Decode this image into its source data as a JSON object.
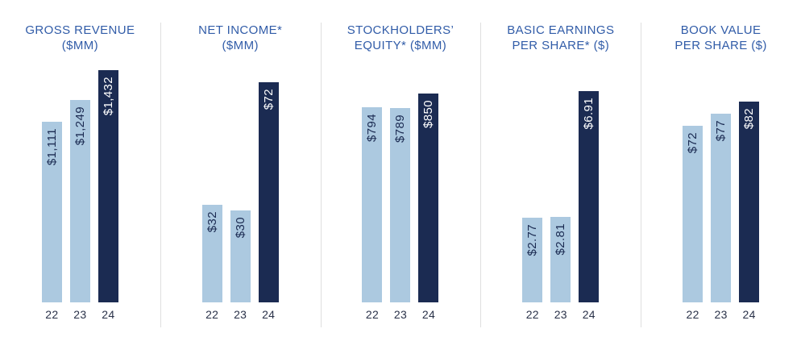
{
  "colors": {
    "bar_light": "#ACC9E0",
    "bar_dark": "#1B2B52",
    "title": "#315CA8",
    "tick": "#2A3249",
    "divider": "#DFDFDF"
  },
  "chart_data": [
    {
      "type": "bar",
      "title": "GROSS REVENUE ($MM)",
      "title_line1": "GROSS REVENUE",
      "title_line2": "($MM)",
      "categories": [
        "22",
        "23",
        "24"
      ],
      "values": [
        1111,
        1249,
        1432
      ],
      "value_labels": [
        "$1,111",
        "$1,249",
        "$1,432"
      ],
      "bar_styles": [
        "light",
        "light",
        "dark"
      ],
      "ymax": 1440,
      "ylim": [
        0,
        1440
      ],
      "xlabel": "",
      "ylabel": "",
      "grid": false,
      "legend": "none"
    },
    {
      "type": "bar",
      "title": "NET INCOME* ($MM)",
      "title_line1": "NET INCOME*",
      "title_line2": "($MM)",
      "categories": [
        "22",
        "23",
        "24"
      ],
      "values": [
        32,
        30,
        72
      ],
      "value_labels": [
        "$32",
        "$30",
        "$72"
      ],
      "bar_styles": [
        "light",
        "light",
        "dark"
      ],
      "ymax": 76.5,
      "ylim": [
        0,
        76.5
      ],
      "xlabel": "",
      "ylabel": "",
      "grid": false,
      "legend": "none"
    },
    {
      "type": "bar",
      "title": "STOCKHOLDERS’ EQUITY* ($MM)",
      "title_line1": "STOCKHOLDERS’",
      "title_line2": "EQUITY* ($MM)",
      "categories": [
        "22",
        "23",
        "24"
      ],
      "values": [
        794,
        789,
        850
      ],
      "value_labels": [
        "$794",
        "$789",
        "$850"
      ],
      "bar_styles": [
        "light",
        "light",
        "dark"
      ],
      "ymax": 950,
      "ylim": [
        0,
        950
      ],
      "xlabel": "",
      "ylabel": "",
      "grid": false,
      "legend": "none"
    },
    {
      "type": "bar",
      "title": "BASIC EARNINGS PER SHARE* ($)",
      "title_line1": "BASIC EARNINGS",
      "title_line2": "PER SHARE* ($)",
      "categories": [
        "22",
        "23",
        "24"
      ],
      "values": [
        2.77,
        2.81,
        6.91
      ],
      "value_labels": [
        "$2.77",
        "$2.81",
        "$6.91"
      ],
      "bar_styles": [
        "light",
        "light",
        "dark"
      ],
      "ymax": 7.65,
      "ylim": [
        0,
        7.65
      ],
      "xlabel": "",
      "ylabel": "",
      "grid": false,
      "legend": "none"
    },
    {
      "type": "bar",
      "title": "BOOK VALUE PER SHARE ($)",
      "title_line1": "BOOK VALUE",
      "title_line2": "PER SHARE ($)",
      "categories": [
        "22",
        "23",
        "24"
      ],
      "values": [
        72,
        77,
        82
      ],
      "value_labels": [
        "$72",
        "$77",
        "$82"
      ],
      "bar_styles": [
        "light",
        "light",
        "dark"
      ],
      "ymax": 95.5,
      "ylim": [
        0,
        95.5
      ],
      "xlabel": "",
      "ylabel": "",
      "grid": false,
      "legend": "none"
    }
  ]
}
